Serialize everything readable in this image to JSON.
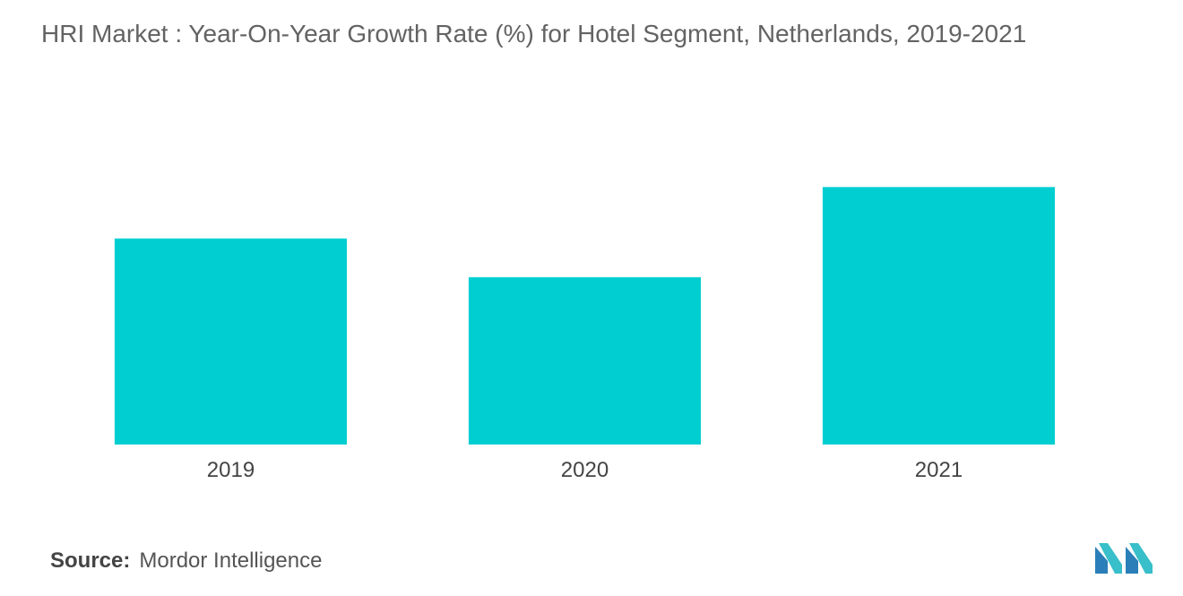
{
  "title": "HRI Market : Year-On-Year Growth Rate (%) for Hotel Segment, Netherlands, 2019-2021",
  "source": {
    "label": "Source:",
    "value": "Mordor Intelligence"
  },
  "colors": {
    "bar": "#00CED1",
    "tick_text": "#444444",
    "title": "#636363"
  },
  "brand": {
    "logo_icon": "mordor-intelligence-logo-icon"
  },
  "chart_data": {
    "type": "bar",
    "categories": [
      "2019",
      "2020",
      "2021"
    ],
    "values": [
      4.0,
      3.25,
      5.0
    ],
    "ylim": [
      0,
      5.5
    ],
    "xlabel": "",
    "ylabel": "",
    "grid": false,
    "legend": "none"
  }
}
